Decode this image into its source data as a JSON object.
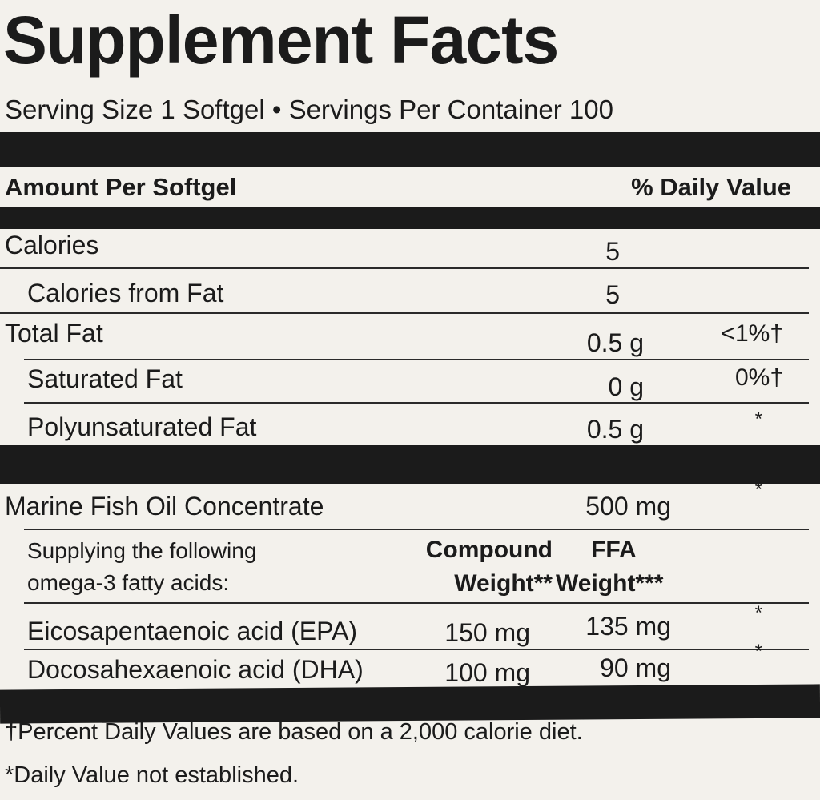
{
  "title": "Supplement Facts",
  "serving": "Serving Size 1 Softgel • Servings Per Container 100",
  "header": {
    "left": "Amount Per Softgel",
    "right": "% Daily Value"
  },
  "rows": [
    {
      "name": "Calories",
      "amount": "5",
      "dv": ""
    },
    {
      "name": "Calories from Fat",
      "amount": "5",
      "dv": ""
    },
    {
      "name": "Total Fat",
      "amount": "0.5 g",
      "dv": "<1%†"
    },
    {
      "name": "Saturated Fat",
      "amount": "0 g",
      "dv": "0%†"
    },
    {
      "name": "Polyunsaturated Fat",
      "amount": "0.5 g",
      "dv": "*"
    }
  ],
  "fish_oil": {
    "name": "Marine Fish Oil Concentrate",
    "amount": "500 mg",
    "dv": "*"
  },
  "omega": {
    "label_line1": "Supplying the following",
    "label_line2": "omega-3 fatty acids:",
    "col1_line1": "Compound",
    "col1_line2": "Weight**",
    "col2_line1": "FFA",
    "col2_line2": "Weight***"
  },
  "acids": [
    {
      "name": "Eicosapentaenoic acid (EPA)",
      "compound": "150 mg",
      "ffa": "135 mg",
      "dv": "*"
    },
    {
      "name": "Docosahexaenoic acid (DHA)",
      "compound": "100 mg",
      "ffa": "90 mg",
      "dv": "*"
    }
  ],
  "footnotes": [
    "†Percent Daily Values are based on a 2,000 calorie diet.",
    "*Daily Value not established."
  ]
}
